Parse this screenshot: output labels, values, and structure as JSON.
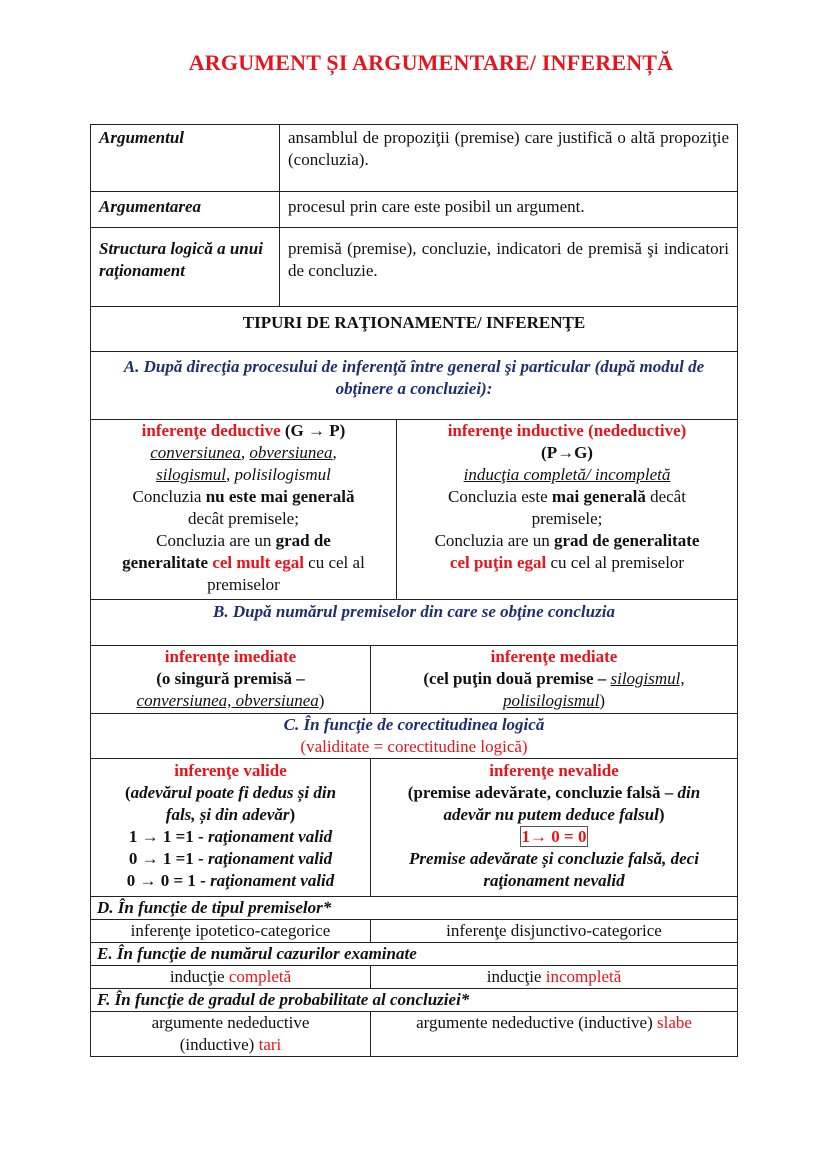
{
  "title": "ARGUMENT ȘI ARGUMENTARE/ INFERENȚĂ",
  "definitions": [
    {
      "term": "Argumentul",
      "definition": "ansamblul de propoziţii (premise) care justifică o altă propoziţie (concluzia)."
    },
    {
      "term": "Argumentarea",
      "definition": "procesul prin care este posibil un argument."
    },
    {
      "term": "Structura logică a unui raţionament",
      "definition": "premisă (premise), concluzie, indicatori de premisă şi indicatori de concluzie."
    }
  ],
  "types_heading": "TIPURI DE RAŢIONAMENTE/ INFERENŢE",
  "sections": {
    "A": {
      "heading": "A. După direcţia procesului de inferenţă între general şi particular (după modul de obţinere a concluziei):",
      "left": [
        [
          {
            "t": "inferenţe deductive ",
            "s": "b r"
          },
          {
            "t": "(G → P)",
            "s": "b"
          }
        ],
        [
          {
            "t": "conversiunea",
            "s": "i u"
          },
          {
            "t": ", ",
            "s": "i"
          },
          {
            "t": "obversiunea",
            "s": "i u"
          },
          {
            "t": ",",
            "s": "i"
          }
        ],
        [
          {
            "t": "silogismul",
            "s": "i u"
          },
          {
            "t": ", polisilogismul",
            "s": "i"
          }
        ],
        [
          {
            "t": "Concluzia ",
            "s": ""
          },
          {
            "t": "nu este mai generală",
            "s": "b"
          }
        ],
        [
          {
            "t": "decât premisele;",
            "s": ""
          }
        ],
        [
          {
            "t": "Concluzia are un ",
            "s": ""
          },
          {
            "t": "grad de",
            "s": "b"
          }
        ],
        [
          {
            "t": "generalitate ",
            "s": "b"
          },
          {
            "t": "cel mult egal",
            "s": "b r"
          },
          {
            "t": " cu cel al",
            "s": ""
          }
        ],
        [
          {
            "t": "premiselor",
            "s": ""
          }
        ]
      ],
      "right": [
        [
          {
            "t": "inferenţe inductive (nedeductive)",
            "s": "b r"
          }
        ],
        [
          {
            "t": "(P→G)",
            "s": "b"
          }
        ],
        [
          {
            "t": "inducţia completă/ incompletă",
            "s": "i u"
          }
        ],
        [
          {
            "t": "Concluzia este ",
            "s": ""
          },
          {
            "t": "mai generală",
            "s": "b"
          },
          {
            "t": " decât",
            "s": ""
          }
        ],
        [
          {
            "t": "premisele;",
            "s": ""
          }
        ],
        [
          {
            "t": "Concluzia are un ",
            "s": ""
          },
          {
            "t": "grad de generalitate",
            "s": "b"
          }
        ],
        [
          {
            "t": "cel puţin egal",
            "s": "b r"
          },
          {
            "t": " cu cel al premiselor",
            "s": ""
          }
        ]
      ]
    },
    "B": {
      "heading": "B. După numărul premiselor din care se obţine concluzia",
      "left": [
        [
          {
            "t": "inferenţe imediate",
            "s": "b r"
          }
        ],
        [
          {
            "t": "(o singură premisă –",
            "s": "b"
          }
        ],
        [
          {
            "t": "conversiunea, obversiunea",
            "s": "i u"
          },
          {
            "t": ")",
            "s": ""
          }
        ]
      ],
      "right": [
        [
          {
            "t": "inferenţe mediate",
            "s": "b r"
          }
        ],
        [
          {
            "t": "(cel puţin două premise – ",
            "s": "b"
          },
          {
            "t": "silogismul,",
            "s": "i u"
          }
        ],
        [
          {
            "t": "polisilogismul",
            "s": "i u"
          },
          {
            "t": ")",
            "s": ""
          }
        ]
      ]
    },
    "C": {
      "heading": "C. În funcţie de corectitudinea logică",
      "subheading": "(validitate = corectitudine logică)",
      "left": [
        [
          {
            "t": "inferenţe valide",
            "s": "b r"
          }
        ],
        [
          {
            "t": "(",
            "s": "b"
          },
          {
            "t": "adevărul poate fi dedus și din",
            "s": "b i"
          }
        ],
        [
          {
            "t": "fals, și din adevăr",
            "s": "b i"
          },
          {
            "t": ")",
            "s": "b"
          }
        ],
        [
          {
            "t": "1 → 1 =1 - ",
            "s": "b"
          },
          {
            "t": "raţionament valid",
            "s": "b i"
          }
        ],
        [
          {
            "t": "0 → 1 =1 - ",
            "s": "b"
          },
          {
            "t": "raţionament valid",
            "s": "b i"
          }
        ],
        [
          {
            "t": "0 → 0 = 1 - ",
            "s": "b"
          },
          {
            "t": "raţionament valid",
            "s": "b i"
          }
        ]
      ],
      "right": [
        [
          {
            "t": "inferenţe nevalide",
            "s": "b r"
          }
        ],
        [
          {
            "t": "(premise adevărate, concluzie falsă – ",
            "s": "b"
          },
          {
            "t": "din",
            "s": "b i"
          }
        ],
        [
          {
            "t": "adevăr nu putem deduce falsul",
            "s": "b i"
          },
          {
            "t": ")",
            "s": "b"
          }
        ],
        [
          {
            "t": "1→ 0 = 0",
            "s": "b r box"
          }
        ],
        [
          {
            "t": "Premise adevărate și concluzie falsă, deci",
            "s": "b i"
          }
        ],
        [
          {
            "t": "raţionament nevalid",
            "s": "b i"
          }
        ]
      ]
    },
    "D": {
      "heading": "D. În funcţie de tipul premiselor*",
      "left": [
        [
          {
            "t": "inferenţe ipotetico-categorice",
            "s": ""
          }
        ]
      ],
      "right": [
        [
          {
            "t": "inferenţe disjunctivo-categorice",
            "s": ""
          }
        ]
      ]
    },
    "E": {
      "heading": "E. În funcţie de numărul cazurilor examinate",
      "left": [
        [
          {
            "t": "inducţie ",
            "s": ""
          },
          {
            "t": "completă",
            "s": "r"
          }
        ]
      ],
      "right": [
        [
          {
            "t": "inducţie ",
            "s": ""
          },
          {
            "t": "incompletă",
            "s": "r"
          }
        ]
      ]
    },
    "F": {
      "heading": "F. În funcţie de gradul de probabilitate al concluziei*",
      "left": [
        [
          {
            "t": "argumente nedeductive",
            "s": ""
          }
        ],
        [
          {
            "t": "(inductive) ",
            "s": ""
          },
          {
            "t": "tari",
            "s": "r"
          }
        ]
      ],
      "right": [
        [
          {
            "t": "argumente nedeductive (inductive) ",
            "s": ""
          },
          {
            "t": "slabe",
            "s": "r"
          }
        ]
      ]
    }
  }
}
